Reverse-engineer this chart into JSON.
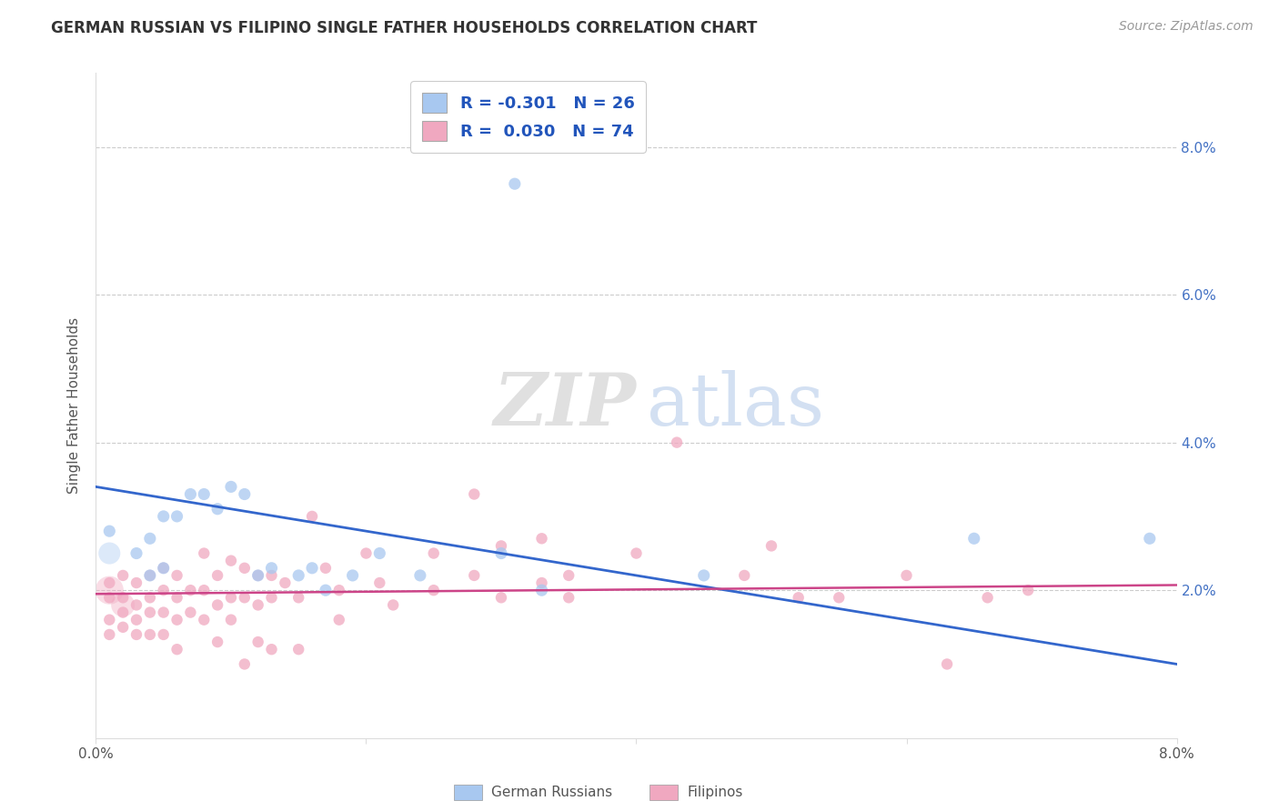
{
  "title": "GERMAN RUSSIAN VS FILIPINO SINGLE FATHER HOUSEHOLDS CORRELATION CHART",
  "source": "Source: ZipAtlas.com",
  "ylabel": "Single Father Households",
  "legend_blue": "R = -0.301   N = 26",
  "legend_pink": "R =  0.030   N = 74",
  "german_russian": [
    [
      0.001,
      0.028
    ],
    [
      0.003,
      0.025
    ],
    [
      0.004,
      0.027
    ],
    [
      0.004,
      0.022
    ],
    [
      0.005,
      0.03
    ],
    [
      0.005,
      0.023
    ],
    [
      0.006,
      0.03
    ],
    [
      0.007,
      0.033
    ],
    [
      0.008,
      0.033
    ],
    [
      0.009,
      0.031
    ],
    [
      0.01,
      0.034
    ],
    [
      0.011,
      0.033
    ],
    [
      0.012,
      0.022
    ],
    [
      0.013,
      0.023
    ],
    [
      0.015,
      0.022
    ],
    [
      0.016,
      0.023
    ],
    [
      0.017,
      0.02
    ],
    [
      0.019,
      0.022
    ],
    [
      0.021,
      0.025
    ],
    [
      0.024,
      0.022
    ],
    [
      0.03,
      0.025
    ],
    [
      0.033,
      0.02
    ],
    [
      0.045,
      0.022
    ],
    [
      0.065,
      0.027
    ],
    [
      0.031,
      0.075
    ],
    [
      0.078,
      0.027
    ]
  ],
  "filipino": [
    [
      0.001,
      0.021
    ],
    [
      0.001,
      0.019
    ],
    [
      0.001,
      0.016
    ],
    [
      0.001,
      0.014
    ],
    [
      0.002,
      0.022
    ],
    [
      0.002,
      0.019
    ],
    [
      0.002,
      0.017
    ],
    [
      0.002,
      0.015
    ],
    [
      0.003,
      0.021
    ],
    [
      0.003,
      0.018
    ],
    [
      0.003,
      0.016
    ],
    [
      0.003,
      0.014
    ],
    [
      0.004,
      0.022
    ],
    [
      0.004,
      0.019
    ],
    [
      0.004,
      0.017
    ],
    [
      0.004,
      0.014
    ],
    [
      0.005,
      0.023
    ],
    [
      0.005,
      0.02
    ],
    [
      0.005,
      0.017
    ],
    [
      0.005,
      0.014
    ],
    [
      0.006,
      0.022
    ],
    [
      0.006,
      0.019
    ],
    [
      0.006,
      0.016
    ],
    [
      0.006,
      0.012
    ],
    [
      0.007,
      0.02
    ],
    [
      0.007,
      0.017
    ],
    [
      0.008,
      0.025
    ],
    [
      0.008,
      0.02
    ],
    [
      0.008,
      0.016
    ],
    [
      0.009,
      0.022
    ],
    [
      0.009,
      0.018
    ],
    [
      0.009,
      0.013
    ],
    [
      0.01,
      0.024
    ],
    [
      0.01,
      0.019
    ],
    [
      0.01,
      0.016
    ],
    [
      0.011,
      0.023
    ],
    [
      0.011,
      0.019
    ],
    [
      0.011,
      0.01
    ],
    [
      0.012,
      0.022
    ],
    [
      0.012,
      0.018
    ],
    [
      0.012,
      0.013
    ],
    [
      0.013,
      0.022
    ],
    [
      0.013,
      0.019
    ],
    [
      0.013,
      0.012
    ],
    [
      0.014,
      0.021
    ],
    [
      0.015,
      0.019
    ],
    [
      0.015,
      0.012
    ],
    [
      0.016,
      0.03
    ],
    [
      0.017,
      0.023
    ],
    [
      0.018,
      0.02
    ],
    [
      0.018,
      0.016
    ],
    [
      0.02,
      0.025
    ],
    [
      0.021,
      0.021
    ],
    [
      0.022,
      0.018
    ],
    [
      0.025,
      0.025
    ],
    [
      0.025,
      0.02
    ],
    [
      0.028,
      0.033
    ],
    [
      0.028,
      0.022
    ],
    [
      0.03,
      0.026
    ],
    [
      0.03,
      0.019
    ],
    [
      0.033,
      0.027
    ],
    [
      0.033,
      0.021
    ],
    [
      0.035,
      0.022
    ],
    [
      0.035,
      0.019
    ],
    [
      0.04,
      0.025
    ],
    [
      0.043,
      0.04
    ],
    [
      0.048,
      0.022
    ],
    [
      0.05,
      0.026
    ],
    [
      0.052,
      0.019
    ],
    [
      0.055,
      0.019
    ],
    [
      0.06,
      0.022
    ],
    [
      0.063,
      0.01
    ],
    [
      0.066,
      0.019
    ],
    [
      0.069,
      0.02
    ]
  ],
  "blue_color": "#a8c8f0",
  "pink_color": "#f0a8c0",
  "blue_line_color": "#3366cc",
  "pink_line_color": "#cc4488",
  "bg_color": "#ffffff",
  "grid_color": "#cccccc",
  "title_color": "#333333",
  "axis_label_color": "#4472c4",
  "tick_label_color": "#555555",
  "xlim": [
    0.0,
    0.08
  ],
  "ylim": [
    0.0,
    0.09
  ],
  "blue_trend": [
    -25.0,
    0.035
  ],
  "pink_trend": [
    0.5,
    0.019
  ]
}
